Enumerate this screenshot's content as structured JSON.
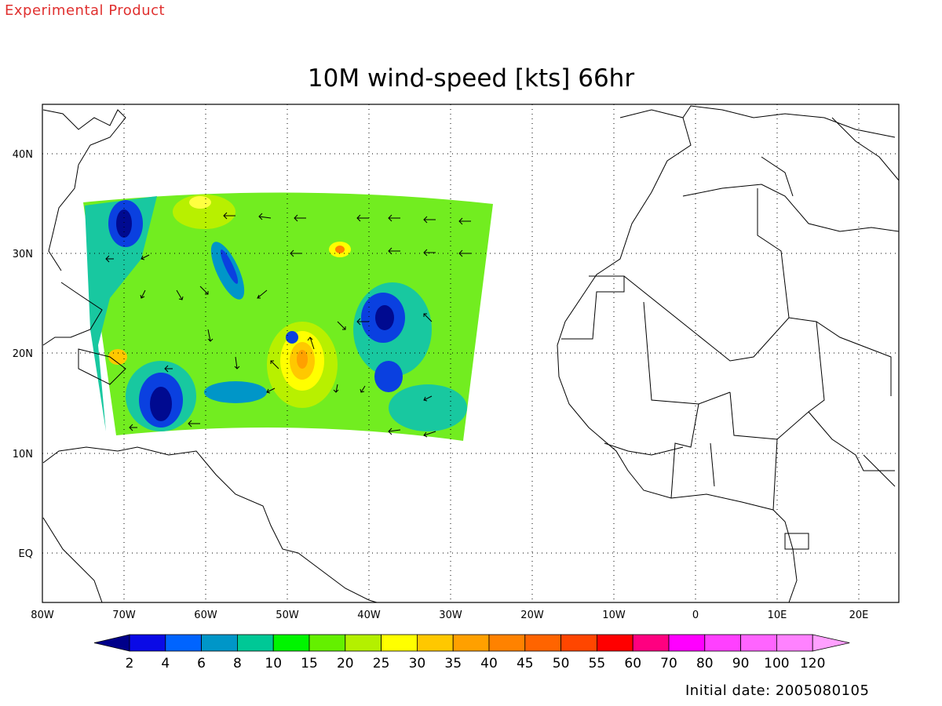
{
  "header": {
    "label": "Experimental Product"
  },
  "title": "10M wind-speed [kts] 66hr",
  "footer": {
    "initial_date": "Initial date: 2005080105"
  },
  "map": {
    "lat_labels": [
      "40N",
      "30N",
      "20N",
      "10N",
      "EQ"
    ],
    "lon_labels": [
      "80W",
      "70W",
      "60W",
      "50W",
      "40W",
      "30W",
      "20W",
      "10W",
      "0",
      "10E",
      "20E"
    ]
  },
  "colorbar": {
    "labels": [
      "2",
      "4",
      "6",
      "8",
      "10",
      "15",
      "20",
      "25",
      "30",
      "35",
      "40",
      "45",
      "50",
      "55",
      "60",
      "70",
      "80",
      "90",
      "100",
      "120"
    ],
    "colors": [
      "#00008a",
      "#0a0ae6",
      "#0064ff",
      "#0096c8",
      "#00c896",
      "#00f500",
      "#64f000",
      "#b4f000",
      "#ffff00",
      "#ffc800",
      "#ffa000",
      "#ff8200",
      "#ff6400",
      "#ff4600",
      "#ff0000",
      "#ff0080",
      "#ff00ff",
      "#ff40ff",
      "#ff64ff",
      "#ff82ff",
      "#ffa0ff"
    ]
  }
}
